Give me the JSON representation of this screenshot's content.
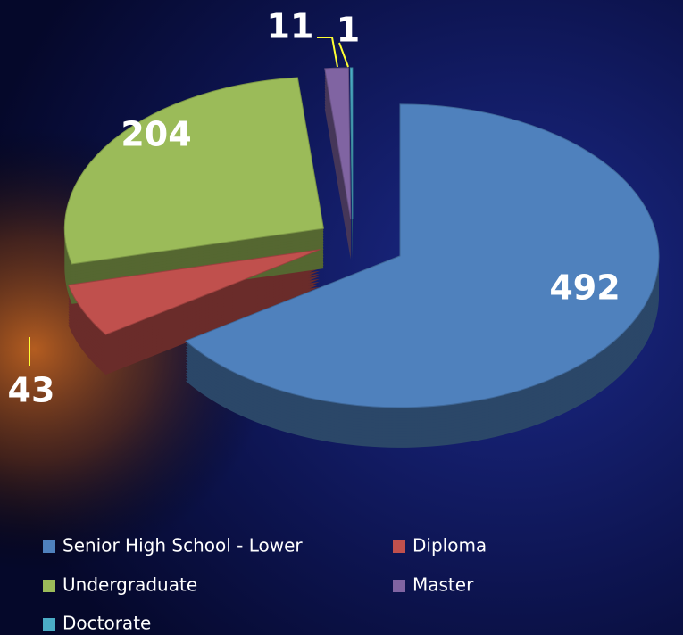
{
  "chart_data": {
    "type": "pie",
    "categories": [
      "Senior High School - Lower",
      "Diploma",
      "Undergraduate",
      "Master",
      "Doctorate"
    ],
    "values": [
      492,
      43,
      204,
      11,
      1
    ],
    "colors": [
      "#4f81bd",
      "#c0504d",
      "#9bbb59",
      "#8064a2",
      "#4bacc6"
    ],
    "legend": "bottom"
  }
}
